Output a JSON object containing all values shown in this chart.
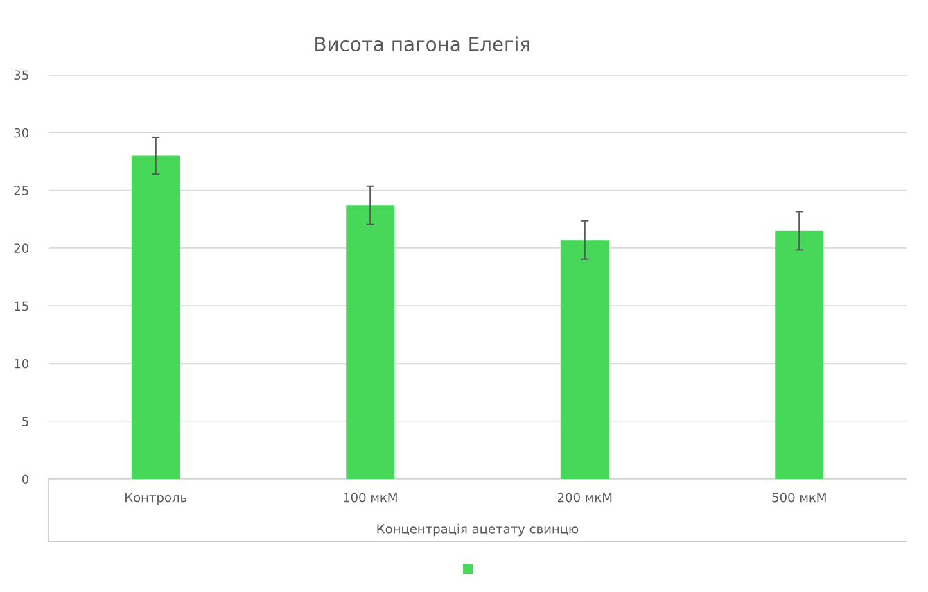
{
  "chart_data": {
    "type": "bar",
    "title": "Висота пагона Елегія",
    "xlabel": "Концентрація ацетату свинцю",
    "categories": [
      "Контроль",
      "100 мкМ",
      "200 мкМ",
      "500 мкМ"
    ],
    "series": [
      {
        "color": "#47d85a",
        "values": [
          28,
          23.7,
          20.7,
          21.5
        ],
        "errors": [
          1.6,
          1.65,
          1.65,
          1.65
        ]
      }
    ],
    "ylim": [
      0,
      35
    ],
    "yticks": [
      0,
      5,
      10,
      15,
      20,
      25,
      30,
      35
    ],
    "grid": "y"
  }
}
